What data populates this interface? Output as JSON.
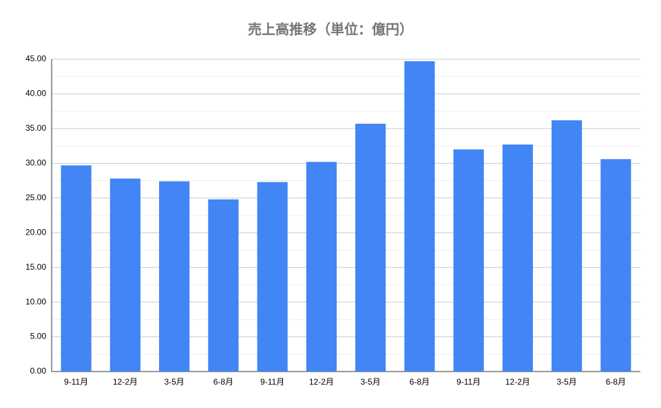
{
  "chart_data": {
    "type": "bar",
    "title": "売上高推移（単位：億円）",
    "categories": [
      "9-11月",
      "12-2月",
      "3-5月",
      "6-8月",
      "9-11月",
      "12-2月",
      "3-5月",
      "6-8月",
      "9-11月",
      "12-2月",
      "3-5月",
      "6-8月"
    ],
    "values": [
      29.7,
      27.8,
      27.4,
      24.8,
      27.3,
      30.2,
      35.7,
      44.7,
      32.0,
      32.7,
      36.2,
      30.6
    ],
    "color": "#4285f4",
    "ylim": [
      0,
      45
    ],
    "yticks": [
      {
        "value": 0,
        "label": "0.00"
      },
      {
        "value": 5,
        "label": "5.00"
      },
      {
        "value": 10,
        "label": "10.00"
      },
      {
        "value": 15,
        "label": "15.00"
      },
      {
        "value": 20,
        "label": "20.00"
      },
      {
        "value": 25,
        "label": "25.00"
      },
      {
        "value": 30,
        "label": "30.00"
      },
      {
        "value": 35,
        "label": "35.00"
      },
      {
        "value": 40,
        "label": "40.00"
      },
      {
        "value": 45,
        "label": "45.00"
      }
    ],
    "minor_yticks": [
      2.5,
      7.5,
      12.5,
      17.5,
      22.5,
      27.5,
      32.5,
      37.5,
      42.5
    ],
    "grid": true
  }
}
